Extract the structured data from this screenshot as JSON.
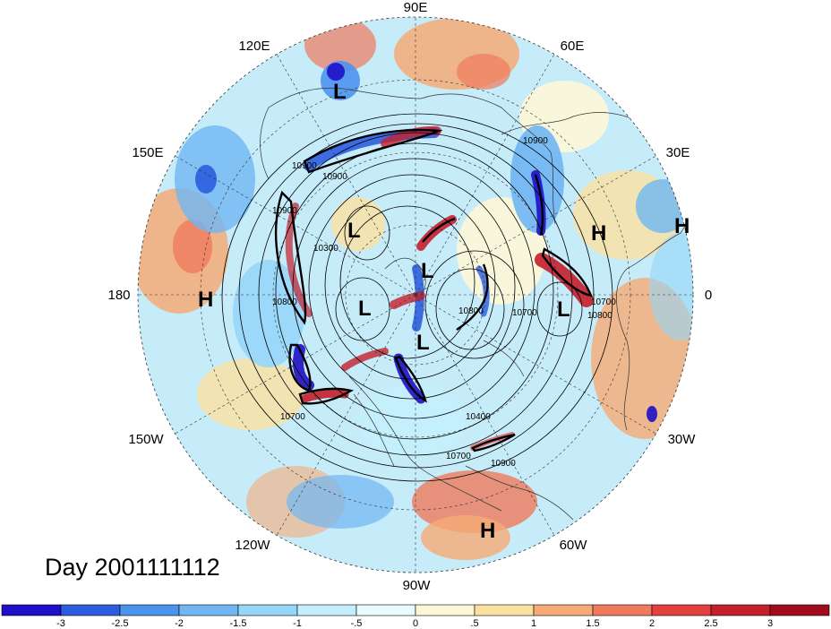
{
  "title": "Day 2001111112",
  "longitude_labels": [
    "90E",
    "60E",
    "30E",
    "0",
    "30W",
    "60W",
    "90W",
    "120W",
    "150W",
    "180",
    "150E",
    "120E"
  ],
  "contour_labels": [
    "10900",
    "10900",
    "10900",
    "10300",
    "10800",
    "10700",
    "10900",
    "10800",
    "10700",
    "10800",
    "10700",
    "10400",
    "10700",
    "10900"
  ],
  "pressure_systems": [
    {
      "type": "L"
    },
    {
      "type": "L"
    },
    {
      "type": "L"
    },
    {
      "type": "L"
    },
    {
      "type": "L"
    },
    {
      "type": "L"
    },
    {
      "type": "H"
    },
    {
      "type": "H"
    },
    {
      "type": "H"
    },
    {
      "type": "H"
    }
  ],
  "colorbar": {
    "labels": [
      "-3",
      "-2.5",
      "-2",
      "-1.5",
      "-1",
      "-.5",
      "0",
      ".5",
      "1",
      "1.5",
      "2",
      "2.5",
      "3"
    ],
    "colors": [
      "#1f0fc8",
      "#2c5ddf",
      "#4c93ee",
      "#6fb6f3",
      "#96d6f9",
      "#c3effc",
      "#e9fbfc",
      "#fdf7d7",
      "#fbe1a0",
      "#f6ab76",
      "#ef7a5c",
      "#e3403e",
      "#c51f2b",
      "#a10c1d"
    ]
  }
}
